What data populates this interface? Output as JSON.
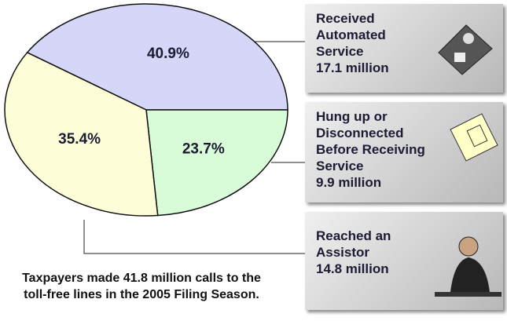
{
  "chart_data": {
    "type": "pie",
    "categories": [
      "Received Automated Service",
      "Hung up or Disconnected Before Receiving Service",
      "Reached an Assistor"
    ],
    "values": [
      40.9,
      23.7,
      35.4
    ],
    "value_labels": [
      "40.9%",
      "23.7%",
      "35.4%"
    ],
    "colors": [
      "#d6d6f8",
      "#d8fcd8",
      "#fdfdd8"
    ],
    "callout_counts": [
      "17.1 million",
      "9.9 million",
      "14.8 million"
    ],
    "caption": "Taxpayers made 41.8 million calls to the toll-free lines in the 2005 Filing Season."
  }
}
